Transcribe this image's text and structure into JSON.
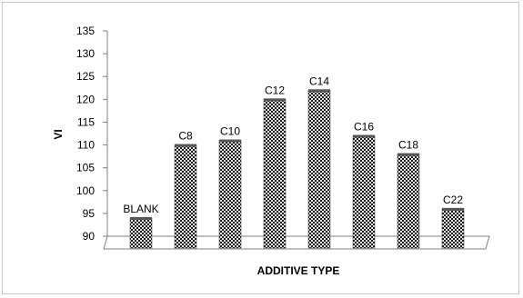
{
  "chart_data": {
    "type": "bar",
    "title": "",
    "xlabel": "ADDITIVE TYPE",
    "ylabel": "VI",
    "categories": [
      "BLANK",
      "C8",
      "C10",
      "C12",
      "C14",
      "C16",
      "C18",
      "C22"
    ],
    "values": [
      94,
      110,
      111,
      120,
      122,
      112,
      108,
      96
    ],
    "ylim": [
      90,
      135
    ],
    "yticks": [
      90,
      95,
      100,
      105,
      110,
      115,
      120,
      125,
      130,
      135
    ],
    "data_labels": true,
    "grid": false,
    "legend": "none",
    "bar_pattern": "checkered",
    "colors": {
      "bar_dark": "#1a1a1a",
      "bar_light": "#e6e6e6",
      "axis": "#7f7f7f",
      "frame": "#c8c8c8"
    }
  }
}
